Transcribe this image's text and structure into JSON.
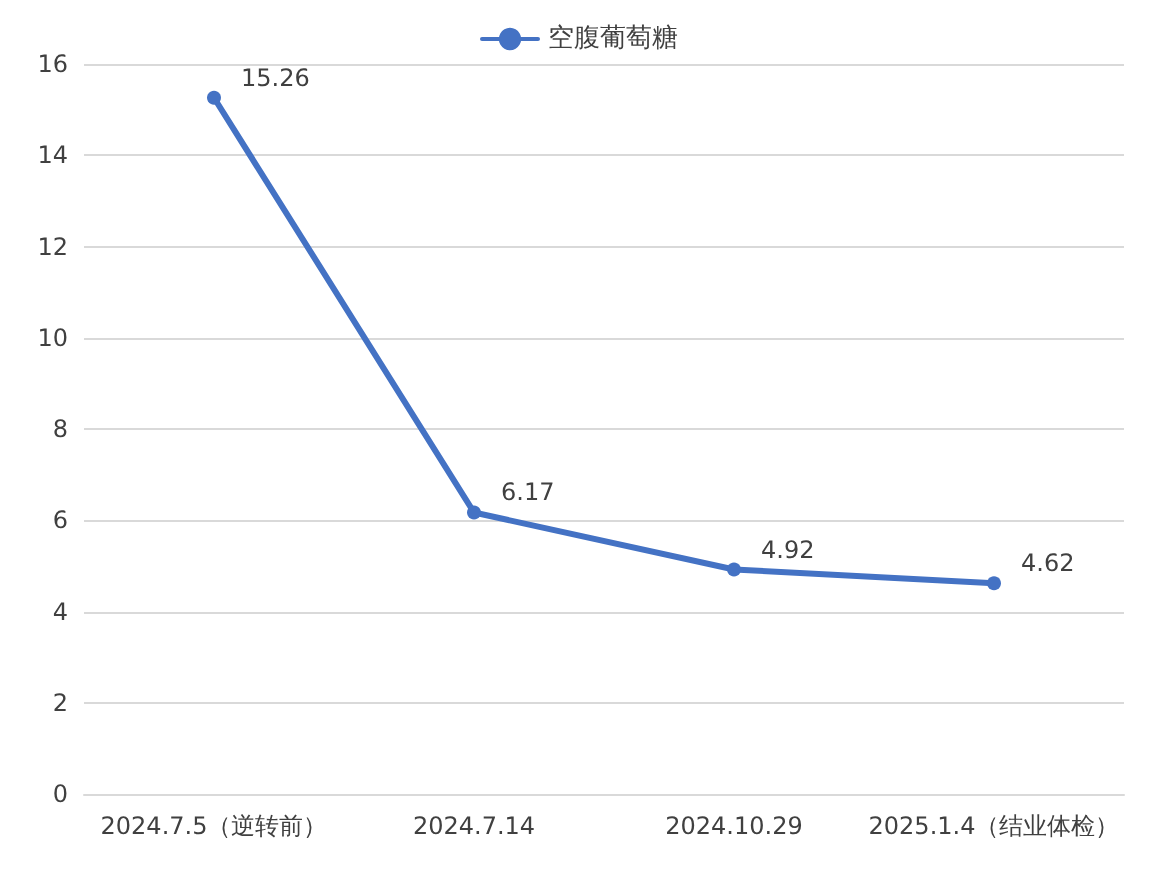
{
  "chart_data": {
    "type": "line",
    "categories": [
      "2024.7.5（逆转前）",
      "2024.7.14",
      "2024.10.29",
      "2025.1.4（结业体检）"
    ],
    "series": [
      {
        "name": "空腹葡萄糖",
        "color": "#4472c4",
        "values": [
          15.26,
          6.17,
          4.92,
          4.62
        ]
      }
    ],
    "ylim": [
      0,
      16
    ],
    "yticks": [
      0,
      2,
      4,
      6,
      8,
      10,
      12,
      14,
      16
    ],
    "grid": "y",
    "legend": "top",
    "marker": "circle",
    "line_style": "solid",
    "data_labels": true
  }
}
